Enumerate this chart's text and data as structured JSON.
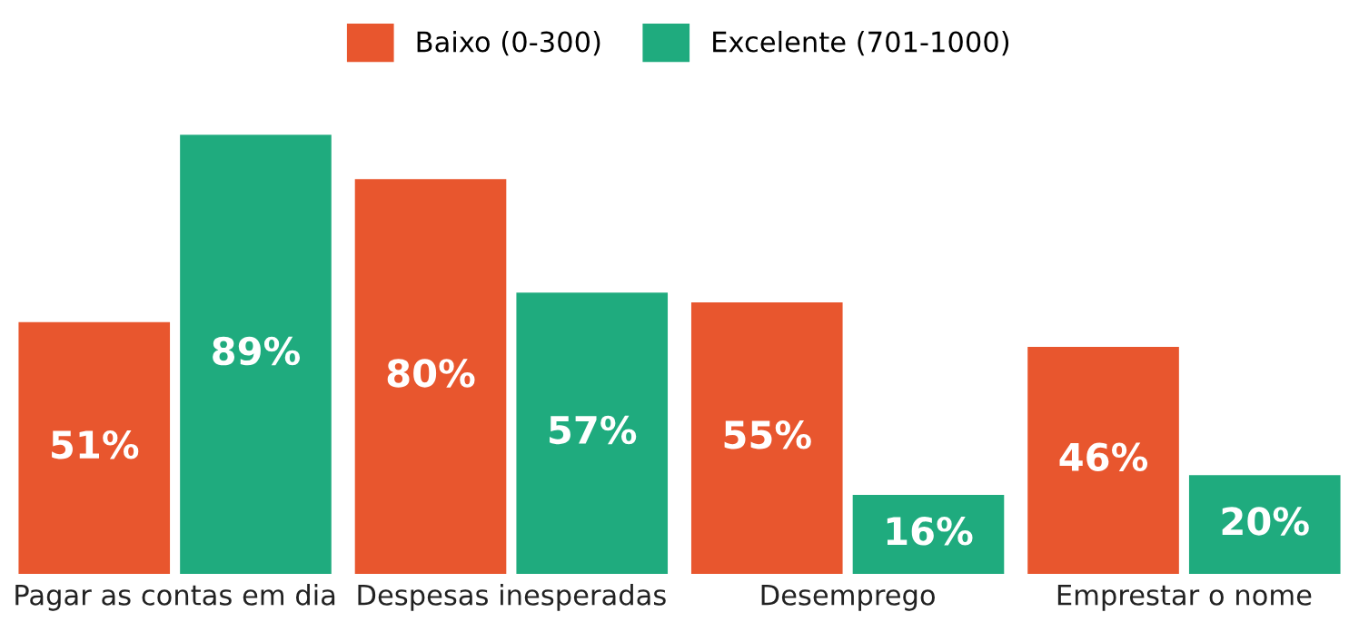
{
  "chart_data": {
    "type": "bar",
    "legend": "top",
    "grid": false,
    "categories": [
      "Pagar as contas em dia",
      "Despesas inesperadas",
      "Desemprego",
      "Emprestar o nome"
    ],
    "series": [
      {
        "name": "Baixo (0-300)",
        "color": "#e8562e",
        "values": [
          51,
          80,
          55,
          46
        ],
        "value_labels": [
          "51%",
          "80%",
          "55%",
          "46%"
        ]
      },
      {
        "name": "Excelente (701-1000)",
        "color": "#1fab7e",
        "values": [
          89,
          57,
          16,
          20
        ],
        "value_labels": [
          "89%",
          "57%",
          "16%",
          "20%"
        ]
      }
    ]
  }
}
